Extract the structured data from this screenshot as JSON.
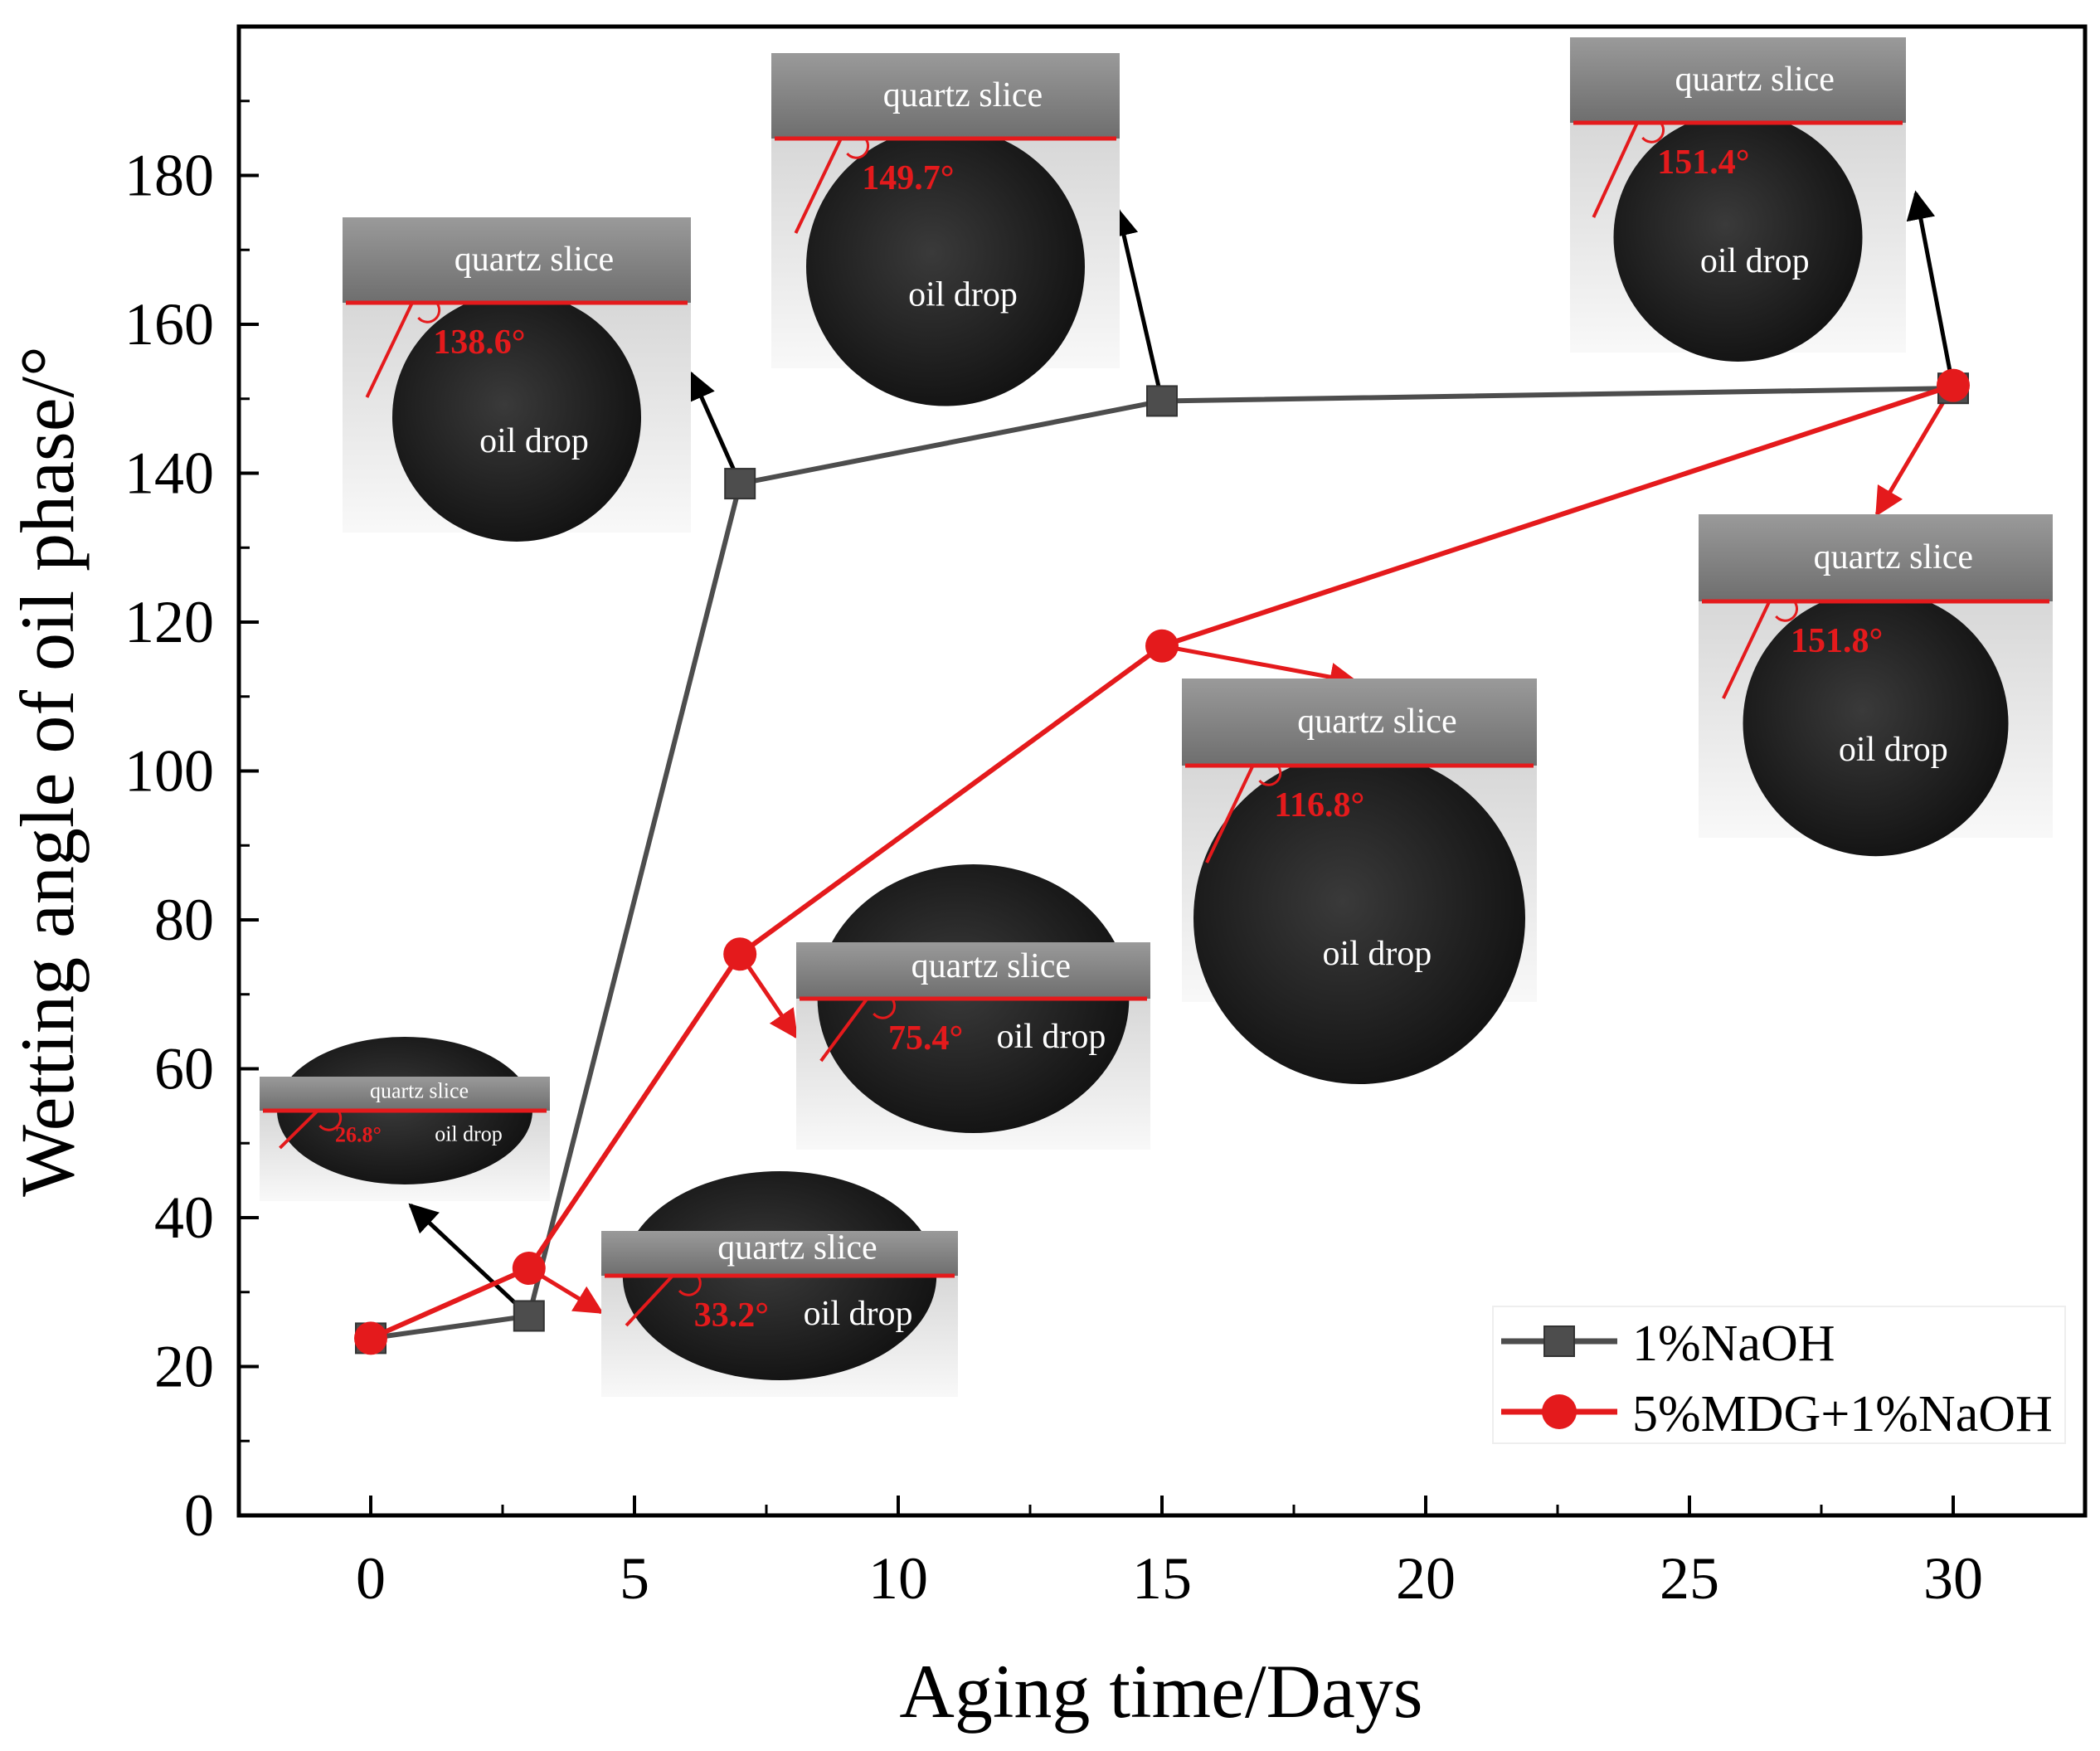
{
  "chart_data": {
    "type": "line",
    "title": "",
    "xlabel": "Aging time/Days",
    "ylabel": "Wetting angle of oil phase/°",
    "xlim": [
      -2.5,
      32.5
    ],
    "ylim": [
      0,
      200
    ],
    "x_ticks": [
      0,
      5,
      10,
      15,
      20,
      25,
      30
    ],
    "y_ticks": [
      0,
      20,
      40,
      60,
      80,
      100,
      120,
      140,
      160,
      180
    ],
    "grid": false,
    "legend_position": "bottom-right",
    "series": [
      {
        "name": "1%NaOH",
        "color": "#4d4d4d",
        "marker": "square",
        "x": [
          0,
          3,
          7,
          15,
          30
        ],
        "y": [
          23.8,
          26.8,
          138.6,
          149.7,
          151.4
        ]
      },
      {
        "name": "5%MDG+1%NaOH",
        "color": "#e41a1c",
        "marker": "circle",
        "x": [
          0,
          3,
          7,
          15,
          30
        ],
        "y": [
          23.8,
          33.2,
          75.4,
          116.8,
          151.8
        ]
      }
    ],
    "insets": [
      {
        "series": 0,
        "x": 3,
        "angle": "26.8°",
        "quartz_label": "quartz slice",
        "oil_label": "oil drop"
      },
      {
        "series": 0,
        "x": 7,
        "angle": "138.6°",
        "quartz_label": "quartz slice",
        "oil_label": "oil drop"
      },
      {
        "series": 0,
        "x": 15,
        "angle": "149.7°",
        "quartz_label": "quartz slice",
        "oil_label": "oil drop"
      },
      {
        "series": 0,
        "x": 30,
        "angle": "151.4°",
        "quartz_label": "quartz slice",
        "oil_label": "oil drop"
      },
      {
        "series": 1,
        "x": 3,
        "angle": "33.2°",
        "quartz_label": "quartz slice",
        "oil_label": "oil drop"
      },
      {
        "series": 1,
        "x": 7,
        "angle": "75.4°",
        "quartz_label": "quartz slice",
        "oil_label": "oil drop"
      },
      {
        "series": 1,
        "x": 15,
        "angle": "116.8°",
        "quartz_label": "quartz slice",
        "oil_label": "oil drop"
      },
      {
        "series": 1,
        "x": 30,
        "angle": "151.8°",
        "quartz_label": "quartz slice",
        "oil_label": "oil drop"
      }
    ]
  }
}
